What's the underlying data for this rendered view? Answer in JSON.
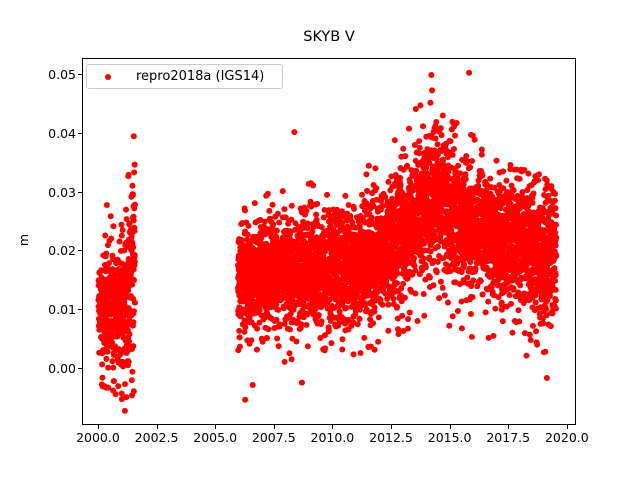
{
  "chart_data": {
    "type": "scatter",
    "title": "SKYB V",
    "xlabel": "",
    "ylabel": "m",
    "grid": false,
    "background": "#ffffff",
    "axes": {
      "xlim": [
        1999.32,
        2020.39
      ],
      "ylim": [
        -0.0097,
        0.0527
      ],
      "xticks": [
        {
          "value": 2000.0,
          "label": "2000.0"
        },
        {
          "value": 2002.5,
          "label": "2002.5"
        },
        {
          "value": 2005.0,
          "label": "2005.0"
        },
        {
          "value": 2007.5,
          "label": "2007.5"
        },
        {
          "value": 2010.0,
          "label": "2010.0"
        },
        {
          "value": 2012.5,
          "label": "2012.5"
        },
        {
          "value": 2015.0,
          "label": "2015.0"
        },
        {
          "value": 2017.5,
          "label": "2017.5"
        },
        {
          "value": 2020.0,
          "label": "2020.0"
        }
      ],
      "yticks": [
        {
          "value": 0.0,
          "label": "0.00"
        },
        {
          "value": 0.01,
          "label": "0.01"
        },
        {
          "value": 0.02,
          "label": "0.02"
        },
        {
          "value": 0.03,
          "label": "0.03"
        },
        {
          "value": 0.04,
          "label": "0.04"
        },
        {
          "value": 0.05,
          "label": "0.05"
        }
      ]
    },
    "legend": {
      "location": "upper left",
      "entries": [
        {
          "label": "repro2018a (IGS14)",
          "color": "#ff0000",
          "marker": "dot"
        }
      ]
    },
    "series": [
      {
        "name": "repro2018a (IGS14)",
        "color": "#ff0000",
        "marker_diameter_px": 6,
        "seed": 20181,
        "clusters": [
          {
            "x_start": 2000.02,
            "x_end": 2001.24,
            "points_per_year": 330,
            "mean": [
              [
                2000.02,
                0.01
              ],
              [
                2001.24,
                0.011
              ]
            ],
            "std": [
              [
                2000.02,
                0.0048
              ],
              [
                2001.24,
                0.0052
              ]
            ],
            "low": [
              [
                2000.02,
                -0.003
              ],
              [
                2001.24,
                -0.0055
              ]
            ],
            "high": [
              [
                2000.02,
                0.0255
              ],
              [
                2001.24,
                0.027
              ]
            ],
            "tail_prob": 0.07,
            "dip_prob": 0.012
          },
          {
            "x_start": 2001.26,
            "x_end": 2001.58,
            "points_per_year": 330,
            "mean": [
              [
                2001.26,
                0.013
              ],
              [
                2001.58,
                0.0215
              ]
            ],
            "std": [
              [
                2001.26,
                0.0085
              ],
              [
                2001.58,
                0.0085
              ]
            ],
            "low": [
              [
                2001.26,
                -0.0073
              ],
              [
                2001.58,
                -0.004
              ]
            ],
            "high": [
              [
                2001.26,
                0.033
              ],
              [
                2001.58,
                0.0348
              ]
            ],
            "tail_prob": 0.08,
            "dip_prob": 0.02
          },
          {
            "x_start": 2005.97,
            "x_end": 2019.55,
            "points_per_year": 365,
            "mean": [
              [
                2005.97,
                0.015
              ],
              [
                2007.0,
                0.016
              ],
              [
                2008.0,
                0.0163
              ],
              [
                2009.0,
                0.0165
              ],
              [
                2010.0,
                0.017
              ],
              [
                2011.0,
                0.018
              ],
              [
                2012.0,
                0.0195
              ],
              [
                2013.0,
                0.0225
              ],
              [
                2013.5,
                0.025
              ],
              [
                2014.0,
                0.0275
              ],
              [
                2014.5,
                0.0285
              ],
              [
                2015.0,
                0.0265
              ],
              [
                2016.0,
                0.024
              ],
              [
                2017.0,
                0.022
              ],
              [
                2018.0,
                0.0215
              ],
              [
                2019.0,
                0.019
              ],
              [
                2019.55,
                0.0205
              ]
            ],
            "std": [
              [
                2005.97,
                0.004
              ],
              [
                2008.0,
                0.0042
              ],
              [
                2012.0,
                0.0045
              ],
              [
                2013.5,
                0.0055
              ],
              [
                2014.5,
                0.0058
              ],
              [
                2016.0,
                0.005
              ],
              [
                2018.0,
                0.0048
              ],
              [
                2019.55,
                0.0056
              ]
            ],
            "low": [
              [
                2005.97,
                0.0
              ],
              [
                2007.0,
                0.0015
              ],
              [
                2008.0,
                0.0005
              ],
              [
                2009.0,
                0.002
              ],
              [
                2010.0,
                0.003
              ],
              [
                2011.0,
                0.002
              ],
              [
                2012.0,
                0.004
              ],
              [
                2013.0,
                0.006
              ],
              [
                2014.0,
                0.009
              ],
              [
                2015.0,
                0.007
              ],
              [
                2016.0,
                0.005
              ],
              [
                2017.0,
                0.004
              ],
              [
                2018.0,
                0.001
              ],
              [
                2019.0,
                -0.002
              ],
              [
                2019.55,
                0.002
              ]
            ],
            "high": [
              [
                2005.97,
                0.0265
              ],
              [
                2007.0,
                0.029
              ],
              [
                2008.0,
                0.033
              ],
              [
                2009.0,
                0.032
              ],
              [
                2010.0,
                0.031
              ],
              [
                2011.0,
                0.0335
              ],
              [
                2012.0,
                0.036
              ],
              [
                2013.0,
                0.041
              ],
              [
                2014.0,
                0.0465
              ],
              [
                2014.5,
                0.044
              ],
              [
                2015.0,
                0.043
              ],
              [
                2016.0,
                0.0395
              ],
              [
                2017.0,
                0.036
              ],
              [
                2018.0,
                0.034
              ],
              [
                2019.0,
                0.033
              ],
              [
                2019.55,
                0.03
              ]
            ],
            "tail_prob": 0.07,
            "dip_prob": 0.012
          }
        ],
        "outliers": [
          [
            2000.38,
            0.0277
          ],
          [
            2001.02,
            -0.0053
          ],
          [
            2001.15,
            -0.0073
          ],
          [
            2001.53,
            0.0394
          ],
          [
            2006.28,
            -0.0054
          ],
          [
            2006.6,
            -0.0029
          ],
          [
            2008.38,
            0.0401
          ],
          [
            2008.7,
            -0.0025
          ],
          [
            2011.8,
            0.0031
          ],
          [
            2014.22,
            0.0498
          ],
          [
            2014.25,
            0.0472
          ],
          [
            2015.83,
            0.0502
          ],
          [
            2019.15,
            -0.0017
          ]
        ]
      }
    ]
  }
}
